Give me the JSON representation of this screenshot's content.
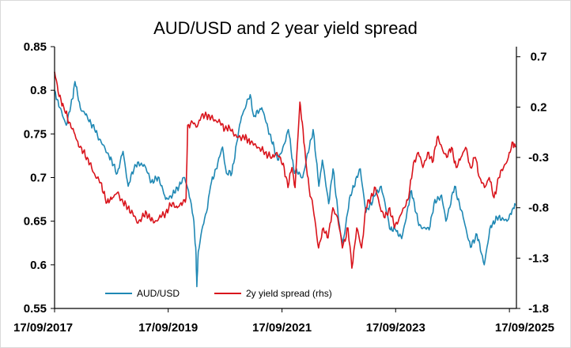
{
  "chart_data": {
    "type": "line",
    "title": "AUD/USD and 2 year yield spread",
    "legend_placement": "bottom-center",
    "grid": false,
    "x_axis": {
      "type": "date",
      "range": [
        "2017-09-17",
        "2025-11-01"
      ],
      "ticks": [
        {
          "date": "2017-09-17",
          "label": "17/09/2017"
        },
        {
          "date": "2019-09-17",
          "label": "17/09/2019"
        },
        {
          "date": "2021-09-17",
          "label": "17/09/2021"
        },
        {
          "date": "2023-09-17",
          "label": "17/09/2023"
        },
        {
          "date": "2025-09-17",
          "label": "17/09/2025"
        }
      ]
    },
    "y_left": {
      "range": [
        0.55,
        0.85
      ],
      "ticks": [
        {
          "value": 0.55,
          "label": "0.55"
        },
        {
          "value": 0.6,
          "label": "0.6"
        },
        {
          "value": 0.65,
          "label": "0.65"
        },
        {
          "value": 0.7,
          "label": "0.7"
        },
        {
          "value": 0.75,
          "label": "0.75"
        },
        {
          "value": 0.8,
          "label": "0.8"
        },
        {
          "value": 0.85,
          "label": "0.85"
        }
      ]
    },
    "y_right": {
      "range": [
        -1.8,
        0.8
      ],
      "ticks": [
        {
          "value": -1.8,
          "label": "-1.8"
        },
        {
          "value": -1.3,
          "label": "-1.3"
        },
        {
          "value": -0.8,
          "label": "-0.8"
        },
        {
          "value": -0.3,
          "label": "-0.3"
        },
        {
          "value": 0.2,
          "label": "0.2"
        },
        {
          "value": 0.7,
          "label": "0.7"
        }
      ]
    },
    "series": [
      {
        "name": "AUD/USD",
        "axis": "left",
        "color": "#1f88b4",
        "points": [
          [
            "2017-09-17",
            0.8
          ],
          [
            "2017-10-20",
            0.78
          ],
          [
            "2017-12-01",
            0.76
          ],
          [
            "2018-01-10",
            0.79
          ],
          [
            "2018-01-26",
            0.81
          ],
          [
            "2018-03-01",
            0.78
          ],
          [
            "2018-04-15",
            0.77
          ],
          [
            "2018-06-01",
            0.755
          ],
          [
            "2018-07-15",
            0.74
          ],
          [
            "2018-09-01",
            0.725
          ],
          [
            "2018-10-25",
            0.705
          ],
          [
            "2018-12-01",
            0.73
          ],
          [
            "2019-01-03",
            0.69
          ],
          [
            "2019-02-15",
            0.715
          ],
          [
            "2019-04-15",
            0.715
          ],
          [
            "2019-06-01",
            0.695
          ],
          [
            "2019-07-20",
            0.7
          ],
          [
            "2019-09-01",
            0.675
          ],
          [
            "2019-10-15",
            0.68
          ],
          [
            "2019-12-31",
            0.7
          ],
          [
            "2020-01-25",
            0.685
          ],
          [
            "2020-02-25",
            0.655
          ],
          [
            "2020-03-12",
            0.62
          ],
          [
            "2020-03-19",
            0.575
          ],
          [
            "2020-03-28",
            0.615
          ],
          [
            "2020-04-20",
            0.64
          ],
          [
            "2020-05-20",
            0.66
          ],
          [
            "2020-06-15",
            0.69
          ],
          [
            "2020-07-20",
            0.71
          ],
          [
            "2020-08-31",
            0.735
          ],
          [
            "2020-09-25",
            0.705
          ],
          [
            "2020-10-30",
            0.705
          ],
          [
            "2020-11-30",
            0.74
          ],
          [
            "2020-12-31",
            0.77
          ],
          [
            "2021-02-25",
            0.795
          ],
          [
            "2021-03-20",
            0.77
          ],
          [
            "2021-05-10",
            0.78
          ],
          [
            "2021-06-30",
            0.75
          ],
          [
            "2021-08-20",
            0.72
          ],
          [
            "2021-09-17",
            0.73
          ],
          [
            "2021-10-28",
            0.755
          ],
          [
            "2021-12-01",
            0.71
          ],
          [
            "2022-01-28",
            0.7
          ],
          [
            "2022-04-05",
            0.755
          ],
          [
            "2022-05-12",
            0.69
          ],
          [
            "2022-06-03",
            0.72
          ],
          [
            "2022-07-14",
            0.67
          ],
          [
            "2022-08-11",
            0.71
          ],
          [
            "2022-09-28",
            0.635
          ],
          [
            "2022-10-13",
            0.625
          ],
          [
            "2022-11-30",
            0.68
          ],
          [
            "2023-02-02",
            0.71
          ],
          [
            "2023-03-10",
            0.66
          ],
          [
            "2023-05-10",
            0.68
          ],
          [
            "2023-06-16",
            0.69
          ],
          [
            "2023-08-15",
            0.64
          ],
          [
            "2023-09-17",
            0.64
          ],
          [
            "2023-10-26",
            0.63
          ],
          [
            "2023-12-28",
            0.685
          ],
          [
            "2024-02-13",
            0.645
          ],
          [
            "2024-04-19",
            0.64
          ],
          [
            "2024-05-20",
            0.67
          ],
          [
            "2024-07-08",
            0.68
          ],
          [
            "2024-08-05",
            0.65
          ],
          [
            "2024-09-30",
            0.69
          ],
          [
            "2024-11-30",
            0.65
          ],
          [
            "2025-01-10",
            0.62
          ],
          [
            "2025-02-20",
            0.635
          ],
          [
            "2025-04-08",
            0.6
          ],
          [
            "2025-05-20",
            0.645
          ],
          [
            "2025-07-10",
            0.655
          ],
          [
            "2025-09-01",
            0.65
          ],
          [
            "2025-10-10",
            0.665
          ],
          [
            "2025-10-25",
            0.668
          ]
        ]
      },
      {
        "name": "2y yield spread (rhs)",
        "axis": "right",
        "color": "#d9141c",
        "points": [
          [
            "2017-09-17",
            0.55
          ],
          [
            "2017-10-10",
            0.35
          ],
          [
            "2017-11-15",
            0.2
          ],
          [
            "2017-12-20",
            0.05
          ],
          [
            "2018-01-20",
            -0.05
          ],
          [
            "2018-02-25",
            -0.2
          ],
          [
            "2018-04-15",
            -0.3
          ],
          [
            "2018-05-25",
            -0.45
          ],
          [
            "2018-07-10",
            -0.55
          ],
          [
            "2018-08-20",
            -0.75
          ],
          [
            "2018-09-25",
            -0.7
          ],
          [
            "2018-10-25",
            -0.65
          ],
          [
            "2018-12-01",
            -0.75
          ],
          [
            "2019-01-01",
            -0.8
          ],
          [
            "2019-02-01",
            -0.85
          ],
          [
            "2019-03-01",
            -0.95
          ],
          [
            "2019-04-01",
            -0.9
          ],
          [
            "2019-05-01",
            -0.85
          ],
          [
            "2019-06-15",
            -0.95
          ],
          [
            "2019-07-20",
            -0.9
          ],
          [
            "2019-09-01",
            -0.85
          ],
          [
            "2019-10-15",
            -0.75
          ],
          [
            "2019-11-15",
            -0.8
          ],
          [
            "2019-12-20",
            -0.75
          ],
          [
            "2020-01-10",
            -0.7
          ],
          [
            "2020-01-20",
            0.02
          ],
          [
            "2020-02-20",
            0.05
          ],
          [
            "2020-03-15",
            0.0
          ],
          [
            "2020-04-15",
            0.1
          ],
          [
            "2020-05-20",
            0.12
          ],
          [
            "2020-07-01",
            0.08
          ],
          [
            "2020-08-15",
            0.05
          ],
          [
            "2020-09-15",
            -0.02
          ],
          [
            "2020-10-15",
            0.0
          ],
          [
            "2020-12-01",
            -0.1
          ],
          [
            "2021-01-15",
            -0.1
          ],
          [
            "2021-03-01",
            -0.15
          ],
          [
            "2021-04-15",
            -0.2
          ],
          [
            "2021-06-01",
            -0.25
          ],
          [
            "2021-07-15",
            -0.3
          ],
          [
            "2021-08-15",
            -0.25
          ],
          [
            "2021-10-01",
            -0.4
          ],
          [
            "2021-10-25",
            -0.6
          ],
          [
            "2021-11-20",
            -0.4
          ],
          [
            "2021-12-10",
            -0.6
          ],
          [
            "2022-01-10",
            0.25
          ],
          [
            "2022-01-25",
            0.05
          ],
          [
            "2022-02-15",
            -0.3
          ],
          [
            "2022-03-10",
            -0.6
          ],
          [
            "2022-04-05",
            -0.8
          ],
          [
            "2022-05-10",
            -1.2
          ],
          [
            "2022-06-10",
            -1.0
          ],
          [
            "2022-07-10",
            -1.1
          ],
          [
            "2022-08-10",
            -0.8
          ],
          [
            "2022-09-10",
            -0.9
          ],
          [
            "2022-10-10",
            -1.2
          ],
          [
            "2022-11-15",
            -1.0
          ],
          [
            "2022-12-10",
            -1.4
          ],
          [
            "2023-01-10",
            -1.0
          ],
          [
            "2023-02-10",
            -1.2
          ],
          [
            "2023-03-10",
            -0.8
          ],
          [
            "2023-04-10",
            -0.7
          ],
          [
            "2023-05-10",
            -0.6
          ],
          [
            "2023-06-10",
            -0.8
          ],
          [
            "2023-07-10",
            -0.9
          ],
          [
            "2023-08-10",
            -0.8
          ],
          [
            "2023-09-10",
            -1.0
          ],
          [
            "2023-10-10",
            -0.9
          ],
          [
            "2023-11-10",
            -0.8
          ],
          [
            "2023-12-10",
            -0.7
          ],
          [
            "2024-01-10",
            -0.35
          ],
          [
            "2024-02-10",
            -0.25
          ],
          [
            "2024-03-10",
            -0.4
          ],
          [
            "2024-04-10",
            -0.25
          ],
          [
            "2024-05-10",
            -0.35
          ],
          [
            "2024-06-10",
            -0.1
          ],
          [
            "2024-07-10",
            -0.2
          ],
          [
            "2024-08-10",
            -0.3
          ],
          [
            "2024-09-10",
            -0.2
          ],
          [
            "2024-10-10",
            -0.4
          ],
          [
            "2024-11-10",
            -0.3
          ],
          [
            "2024-12-10",
            -0.2
          ],
          [
            "2025-01-10",
            -0.4
          ],
          [
            "2025-02-10",
            -0.3
          ],
          [
            "2025-03-10",
            -0.5
          ],
          [
            "2025-04-10",
            -0.6
          ],
          [
            "2025-05-10",
            -0.5
          ],
          [
            "2025-06-10",
            -0.7
          ],
          [
            "2025-07-10",
            -0.5
          ],
          [
            "2025-08-10",
            -0.4
          ],
          [
            "2025-09-10",
            -0.3
          ],
          [
            "2025-10-10",
            -0.15
          ],
          [
            "2025-10-25",
            -0.2
          ]
        ]
      }
    ]
  }
}
